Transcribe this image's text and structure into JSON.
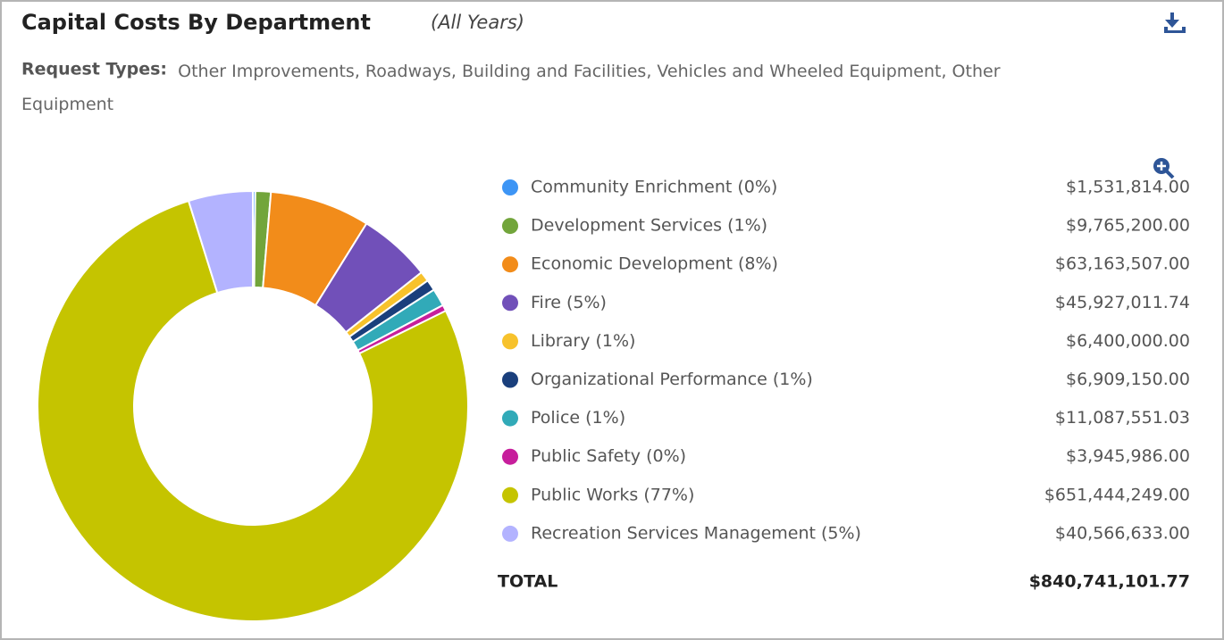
{
  "chart_data": {
    "type": "pie",
    "title": "Capital Costs By Department",
    "subtitle": "(All Years)",
    "filter_label": "Request Types:",
    "filter_text": "Other Improvements, Roadways, Building and Facilities, Vehicles and Wheeled Equipment, Other Equipment",
    "categories": [
      "Community Enrichment (0%)",
      "Development Services (1%)",
      "Economic Development (8%)",
      "Fire (5%)",
      "Library (1%)",
      "Organizational Performance (1%)",
      "Police (1%)",
      "Public Safety (0%)",
      "Public Works (77%)",
      "Recreation Services Management (5%)"
    ],
    "values": [
      1531814.0,
      9765200.0,
      63163507.0,
      45927011.74,
      6400000.0,
      6909150.0,
      11087551.03,
      3945986.0,
      651444249.0,
      40566633.0
    ],
    "value_labels": [
      "$1,531,814.00",
      "$9,765,200.00",
      "$63,163,507.00",
      "$45,927,011.74",
      "$6,400,000.00",
      "$6,909,150.00",
      "$11,087,551.03",
      "$3,945,986.00",
      "$651,444,249.00",
      "$40,566,633.00"
    ],
    "colors": [
      "#3d95f5",
      "#72a53b",
      "#f28c1a",
      "#7150b9",
      "#f7c22c",
      "#1a3f7c",
      "#31aab8",
      "#c71e9c",
      "#c5c400",
      "#b3b3ff"
    ],
    "total": {
      "label": "TOTAL",
      "value": "$840,741,101.77"
    }
  }
}
